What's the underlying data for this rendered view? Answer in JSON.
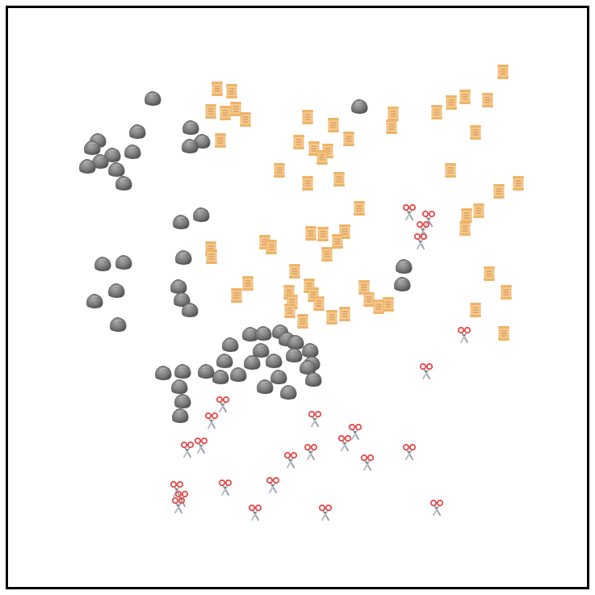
{
  "game": {
    "pieces": {
      "rock": {
        "icon": "rock-icon",
        "color": "#7a7a7a",
        "count": 62
      },
      "paper": {
        "icon": "scroll-icon",
        "color": "#f7c98a",
        "count": 76
      },
      "scissors": {
        "icon": "scissors-icon",
        "color": "#e84a4a",
        "count": 35
      }
    },
    "colors": {
      "border": "#000000",
      "background": "#ffffff"
    }
  }
}
